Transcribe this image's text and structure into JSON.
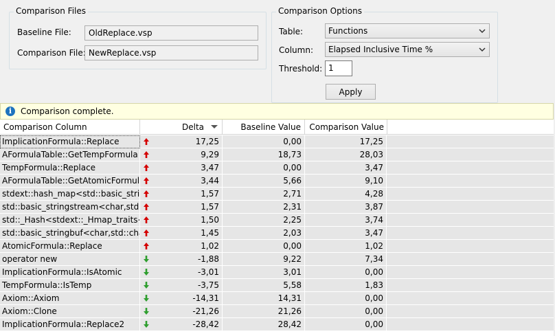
{
  "files": {
    "title": "Comparison Files",
    "baseline_label": "Baseline File:",
    "baseline_value": "OldReplace.vsp",
    "comparison_label": "Comparison File:",
    "comparison_value": "NewReplace.vsp"
  },
  "options": {
    "title": "Comparison Options",
    "table_label": "Table:",
    "table_value": "Functions",
    "column_label": "Column:",
    "column_value": "Elapsed Inclusive Time %",
    "threshold_label": "Threshold:",
    "threshold_value": "1",
    "apply_label": "Apply"
  },
  "info": {
    "icon": "info-icon",
    "message": "Comparison complete."
  },
  "colors": {
    "up_arrow": "#d40000",
    "down_arrow": "#2e9e2e",
    "info_bg": "#ffffe1"
  },
  "table": {
    "columns": [
      "Comparison Column",
      "Delta",
      "Baseline Value",
      "Comparison Value"
    ],
    "sort": "Delta descending",
    "rows": [
      {
        "name": "ImplicationFormula::Replace",
        "trend": "up",
        "delta": "17,25",
        "baseline": "0,00",
        "comparison": "17,25"
      },
      {
        "name": "AFormulaTable::GetTempFormula",
        "trend": "up",
        "delta": "9,29",
        "baseline": "18,73",
        "comparison": "28,03"
      },
      {
        "name": "TempFormula::Replace",
        "trend": "up",
        "delta": "3,47",
        "baseline": "0,00",
        "comparison": "3,47"
      },
      {
        "name": "AFormulaTable::GetAtomicFormula",
        "trend": "up",
        "delta": "3,44",
        "baseline": "5,66",
        "comparison": "9,10"
      },
      {
        "name": "stdext::hash_map<std::basic_string<ch",
        "trend": "up",
        "delta": "1,57",
        "baseline": "2,71",
        "comparison": "4,28"
      },
      {
        "name": "std::basic_stringstream<char,std::char",
        "trend": "up",
        "delta": "1,57",
        "baseline": "2,31",
        "comparison": "3,87"
      },
      {
        "name": "std::_Hash<stdext::_Hmap_traits<std::l",
        "trend": "up",
        "delta": "1,50",
        "baseline": "2,25",
        "comparison": "3,74"
      },
      {
        "name": "std::basic_stringbuf<char,std::char_tra",
        "trend": "up",
        "delta": "1,45",
        "baseline": "2,03",
        "comparison": "3,47"
      },
      {
        "name": "AtomicFormula::Replace",
        "trend": "up",
        "delta": "1,02",
        "baseline": "0,00",
        "comparison": "1,02"
      },
      {
        "name": "operator new",
        "trend": "down",
        "delta": "-1,88",
        "baseline": "9,22",
        "comparison": "7,34"
      },
      {
        "name": "ImplicationFormula::IsAtomic",
        "trend": "down",
        "delta": "-3,01",
        "baseline": "3,01",
        "comparison": "0,00"
      },
      {
        "name": "TempFormula::IsTemp",
        "trend": "down",
        "delta": "-3,75",
        "baseline": "5,58",
        "comparison": "1,83"
      },
      {
        "name": "Axiom::Axiom",
        "trend": "down",
        "delta": "-14,31",
        "baseline": "14,31",
        "comparison": "0,00"
      },
      {
        "name": "Axiom::Clone",
        "trend": "down",
        "delta": "-21,26",
        "baseline": "21,26",
        "comparison": "0,00"
      },
      {
        "name": "ImplicationFormula::Replace2",
        "trend": "down",
        "delta": "-28,42",
        "baseline": "28,42",
        "comparison": "0,00"
      }
    ]
  }
}
